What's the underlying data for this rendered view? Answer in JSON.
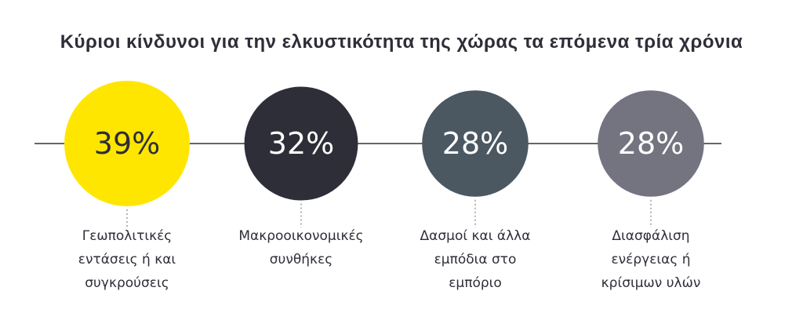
{
  "title": "Κύριοι κίνδυνοι για την ελκυστικότητα της χώρας τα επόμενα τρία χρόνια",
  "colors": {
    "line": "#333333",
    "dotted": "#9a9a9a",
    "text_dark": "#2e2e38"
  },
  "chart_data": {
    "type": "bubble-list",
    "title": "Κύριοι κίνδυνοι για την ελκυστικότητα της χώρας τα επόμενα τρία χρόνια",
    "categories": [
      "Γεωπολιτικές εντάσεις ή και συγκρούσεις",
      "Μακροοικονομικές συνθήκες",
      "Δασμοί και άλλα εμπόδια στο εμπόριο",
      "Διασφάλιση ενέργειας ή κρίσιμων υλών"
    ],
    "values": [
      39,
      32,
      28,
      28
    ],
    "unit": "%",
    "items": [
      {
        "value": 39,
        "display": "39%",
        "label": "Γεωπολιτικές\nεντάσεις ή και\nσυγκρούσεις",
        "color": "#ffe600",
        "text_color": "#2e2e38"
      },
      {
        "value": 32,
        "display": "32%",
        "label": "Μακροοικονομικές\nσυνθήκες",
        "color": "#2e2e38",
        "text_color": "#ffffff"
      },
      {
        "value": 28,
        "display": "28%",
        "label": "Δασμοί και άλλα\nεμπόδια στο\nεμπόριο",
        "color": "#4b5761",
        "text_color": "#ffffff"
      },
      {
        "value": 28,
        "display": "28%",
        "label": "Διασφάλιση\nενέργειας ή\nκρίσιμων υλών",
        "color": "#747480",
        "text_color": "#ffffff"
      }
    ]
  }
}
